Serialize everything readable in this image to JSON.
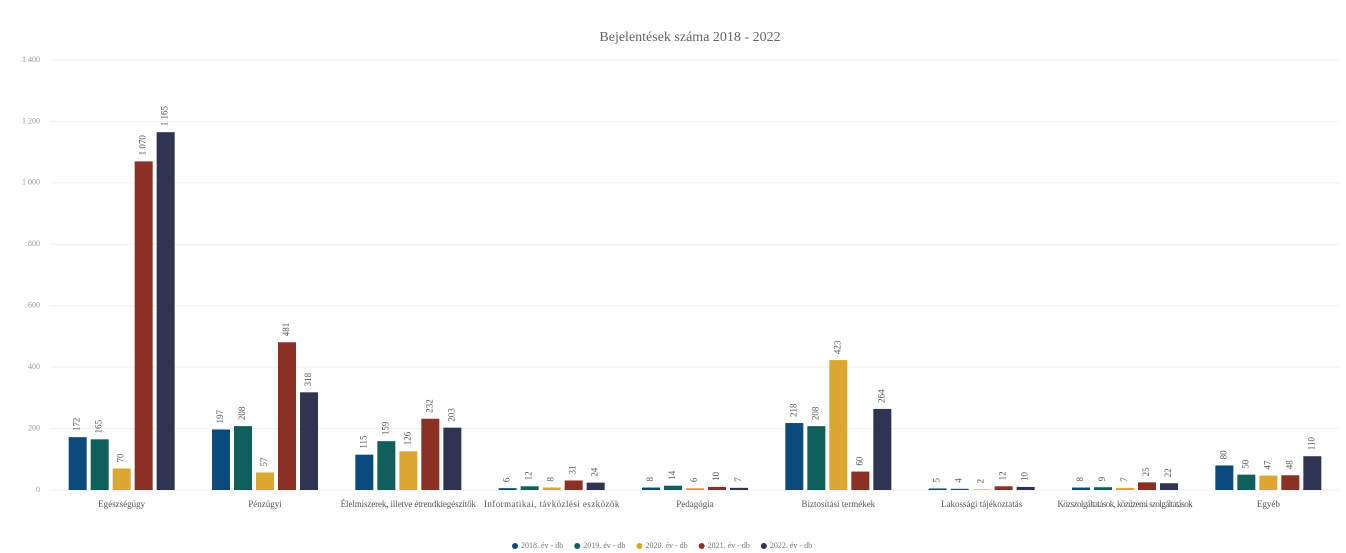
{
  "chart_data": {
    "type": "bar",
    "title": "Bejelentések száma 2018 - 2022",
    "categories": [
      "Egészségügy",
      "Pénzügyi",
      "Élelmiszerek, illetve étrendkiegészítők",
      "Informatikai, távközlési eszközök",
      "Pedagógia",
      "Biztosítási termékek",
      "Lakossági tájékoztatás",
      "Közszolgáltatások, közüzemi szolgáltatások",
      "Egyéb"
    ],
    "series": [
      {
        "name": "2018. év - db",
        "color": "#0b4a7c",
        "values": [
          172,
          197,
          115,
          6,
          8,
          218,
          5,
          8,
          80
        ],
        "value_labels": [
          "172",
          "197",
          "115",
          "6",
          "8",
          "218",
          "5",
          "8",
          "80"
        ]
      },
      {
        "name": "2019. év - db",
        "color": "#0f5f5b",
        "values": [
          165,
          208,
          159,
          12,
          14,
          208,
          4,
          9,
          50
        ],
        "value_labels": [
          "165",
          "208",
          "159",
          "12",
          "14",
          "208",
          "4",
          "9",
          "50"
        ]
      },
      {
        "name": "2020. év - db",
        "color": "#dba631",
        "values": [
          70,
          57,
          126,
          8,
          6,
          423,
          2,
          7,
          47
        ],
        "value_labels": [
          "70",
          "57",
          "126",
          "8",
          "6",
          "423",
          "2",
          "7",
          "47"
        ]
      },
      {
        "name": "2021. év - db",
        "color": "#8c2f25",
        "values": [
          1070,
          481,
          232,
          31,
          10,
          60,
          12,
          25,
          48
        ],
        "value_labels": [
          "1 070",
          "481",
          "232",
          "31",
          "10",
          "60",
          "12",
          "25",
          "48"
        ]
      },
      {
        "name": "2022. év - db",
        "color": "#2f3453",
        "values": [
          1165,
          318,
          203,
          24,
          7,
          264,
          10,
          22,
          110
        ],
        "value_labels": [
          "1 165",
          "318",
          "203",
          "24",
          "7",
          "264",
          "10",
          "22",
          "110"
        ]
      }
    ],
    "ylim": [
      0,
      1400
    ],
    "yticks": [
      0,
      200,
      400,
      600,
      800,
      {
        "value": 1000,
        "label": "1 000"
      },
      {
        "value": 1200,
        "label": "1 200"
      },
      {
        "value": 1400,
        "label": "1 400"
      }
    ],
    "grid": true,
    "legend": "bottom"
  }
}
